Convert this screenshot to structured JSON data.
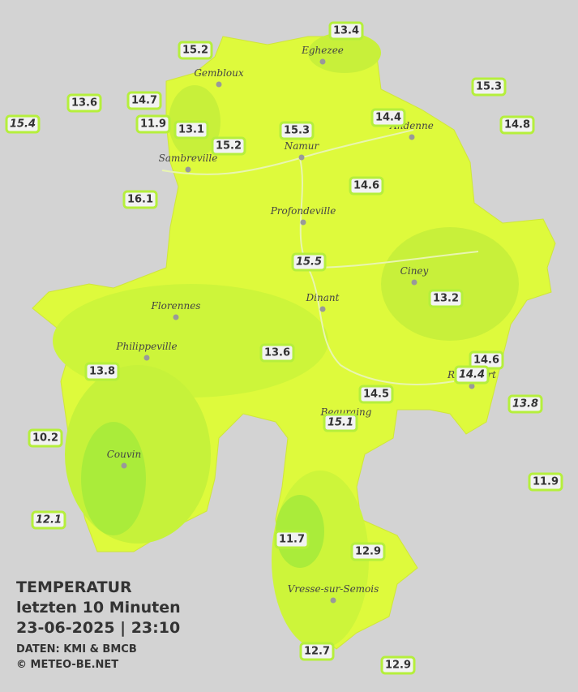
{
  "title": "TEMPERATUR",
  "subtitle": "letzten 10 Minuten",
  "timestamp": "23-06-2025  |  23:10",
  "source": "DATEN: KMI & BMCB",
  "credit": "© METEO-BE.NET",
  "cities": [
    "Eghezee",
    "Gembloux",
    "Andenne",
    "Namur",
    "Sambreville",
    "Profondeville",
    "Ciney",
    "Dinant",
    "Florennes",
    "Philippeville",
    "Rochefort",
    "Beauraing",
    "Couvin",
    "Vresse-sur-Semois"
  ],
  "stations": [
    {
      "value": 13.4
    },
    {
      "value": 15.2
    },
    {
      "value": 15.3
    },
    {
      "value": 13.6
    },
    {
      "value": 14.7
    },
    {
      "value": 15.4,
      "italic": true
    },
    {
      "value": 11.9
    },
    {
      "value": 13.1
    },
    {
      "value": 14.4
    },
    {
      "value": 15.3
    },
    {
      "value": 14.8
    },
    {
      "value": 15.2
    },
    {
      "value": 14.6
    },
    {
      "value": 16.1
    },
    {
      "value": 15.5,
      "italic": true
    },
    {
      "value": 13.2
    },
    {
      "value": 13.6
    },
    {
      "value": 14.6
    },
    {
      "value": 14.4,
      "italic": true
    },
    {
      "value": 13.8
    },
    {
      "value": 14.5
    },
    {
      "value": 13.8,
      "italic": true
    },
    {
      "value": 15.1,
      "italic": true
    },
    {
      "value": 10.2
    },
    {
      "value": 11.9
    },
    {
      "value": 12.1,
      "italic": true
    },
    {
      "value": 11.7
    },
    {
      "value": 12.9
    },
    {
      "value": 12.7
    },
    {
      "value": 12.9
    }
  ]
}
